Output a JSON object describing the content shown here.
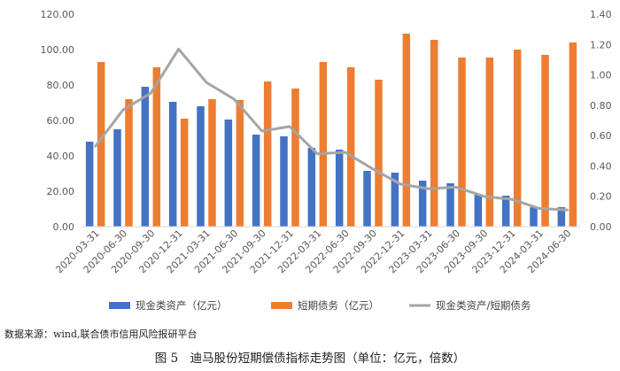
{
  "chart_data": {
    "type": "bar",
    "categories": [
      "2020-03-31",
      "2020-06-30",
      "2020-09-30",
      "2020-12-31",
      "2021-03-31",
      "2021-06-30",
      "2021-09-30",
      "2021-12-31",
      "2022-03-31",
      "2022-06-30",
      "2022-09-30",
      "2022-12-31",
      "2023-03-31",
      "2023-06-30",
      "2023-09-30",
      "2023-12-31",
      "2024-03-31",
      "2024-06-30"
    ],
    "series": [
      {
        "name": "现金类资产（亿元）",
        "type": "bar",
        "axis": "left",
        "color": "#4472C4",
        "values": [
          48.0,
          55.0,
          79.0,
          70.5,
          68.0,
          60.5,
          52.0,
          51.0,
          44.5,
          43.5,
          31.5,
          30.5,
          26.0,
          24.5,
          18.0,
          17.5,
          11.0,
          11.0
        ]
      },
      {
        "name": "短期债务（亿元）",
        "type": "bar",
        "axis": "left",
        "color": "#ED7D31",
        "values": [
          93.0,
          72.0,
          90.0,
          61.0,
          72.0,
          71.5,
          82.0,
          78.0,
          93.0,
          90.0,
          83.0,
          109.0,
          105.5,
          95.5,
          95.5,
          100.0,
          97.0,
          104.0
        ]
      },
      {
        "name": "现金类资产/短期债务",
        "type": "line",
        "axis": "right",
        "color": "#A5A5A5",
        "values": [
          0.53,
          0.77,
          0.88,
          1.17,
          0.95,
          0.84,
          0.63,
          0.66,
          0.48,
          0.49,
          0.38,
          0.28,
          0.25,
          0.26,
          0.2,
          0.18,
          0.12,
          0.11
        ]
      }
    ],
    "ylim": [
      0,
      120
    ],
    "yticks": [
      "0.00",
      "20.00",
      "40.00",
      "60.00",
      "80.00",
      "100.00",
      "120.00"
    ],
    "y2lim": [
      0,
      1.4
    ],
    "y2ticks": [
      "0.00",
      "0.20",
      "0.40",
      "0.60",
      "0.80",
      "1.00",
      "1.20",
      "1.40"
    ],
    "legend_position": "bottom",
    "grid": false
  },
  "source_note": "数据来源：wind,联合债市信用风险报研平台",
  "caption": "图 5　迪马股份短期偿债指标走势图（单位：亿元，倍数）"
}
